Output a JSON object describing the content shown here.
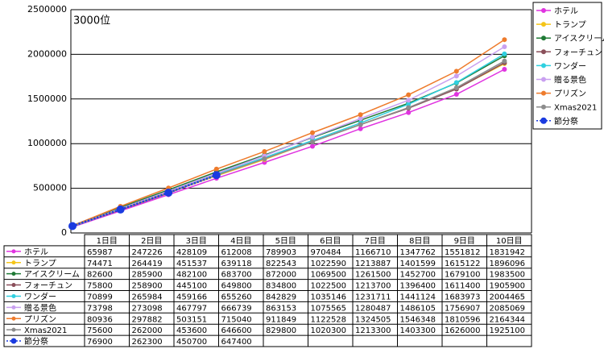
{
  "chart_data": {
    "type": "line",
    "annotation": "3000位",
    "categories": [
      "1日目",
      "2日目",
      "3日目",
      "4日目",
      "5日目",
      "6日目",
      "7日目",
      "8日目",
      "9日目",
      "10日目"
    ],
    "ylim": [
      0,
      2500000
    ],
    "yticks": [
      0,
      500000,
      1000000,
      1500000,
      2000000,
      2500000
    ],
    "grid": true,
    "legend": "right",
    "series": [
      {
        "name": "ホテル",
        "color": "#e033e0",
        "line_style": "solid",
        "values": [
          65987,
          247226,
          428109,
          612008,
          789903,
          970484,
          1166710,
          1347762,
          1551812,
          1831942
        ]
      },
      {
        "name": "トランプ",
        "color": "#f5c518",
        "line_style": "solid",
        "values": [
          74471,
          264419,
          451537,
          639118,
          822543,
          1022590,
          1213887,
          1401599,
          1615122,
          1896096
        ]
      },
      {
        "name": "アイスクリーム",
        "color": "#1f7a35",
        "line_style": "solid",
        "values": [
          82600,
          285900,
          482100,
          683700,
          872000,
          1069500,
          1261500,
          1452700,
          1679100,
          1983500
        ]
      },
      {
        "name": "フォーチュン",
        "color": "#8a4f5a",
        "line_style": "solid",
        "values": [
          75800,
          258900,
          445100,
          649800,
          834800,
          1022500,
          1213700,
          1396400,
          1611400,
          1905900
        ]
      },
      {
        "name": "ワンダー",
        "color": "#2fd0e0",
        "line_style": "solid",
        "values": [
          70899,
          265984,
          459166,
          655260,
          842829,
          1035146,
          1231711,
          1441124,
          1683973,
          2004465
        ]
      },
      {
        "name": "贈る景色",
        "color": "#c9a0f0",
        "line_style": "solid",
        "values": [
          73798,
          273098,
          467797,
          666739,
          863153,
          1075565,
          1280487,
          1486105,
          1756907,
          2085069
        ]
      },
      {
        "name": "プリズン",
        "color": "#ee7b2c",
        "line_style": "solid",
        "values": [
          80936,
          297882,
          503151,
          715040,
          911849,
          1122528,
          1324505,
          1546348,
          1810596,
          2164344
        ]
      },
      {
        "name": "Xmas2021",
        "color": "#8c8c8c",
        "line_style": "solid",
        "values": [
          75600,
          262000,
          453600,
          646600,
          829800,
          1020300,
          1213300,
          1403300,
          1626000,
          1925100
        ]
      },
      {
        "name": "節分祭",
        "color": "#1a3be0",
        "line_style": "dotted",
        "values": [
          76900,
          262300,
          450700,
          647400,
          null,
          null,
          null,
          null,
          null,
          null
        ]
      }
    ]
  }
}
